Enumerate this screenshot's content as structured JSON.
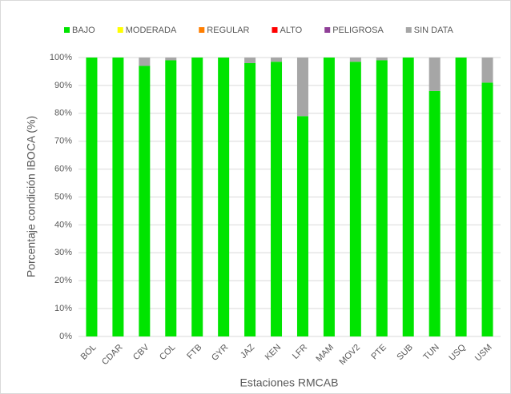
{
  "chart_data": {
    "type": "stacked_bar",
    "categories": [
      "BOL",
      "CDAR",
      "CBV",
      "COL",
      "FTB",
      "GYR",
      "JAZ",
      "KEN",
      "LFR",
      "MAM",
      "MOV2",
      "PTE",
      "SUB",
      "TUN",
      "USQ",
      "USM"
    ],
    "series": [
      {
        "name": "BAJO",
        "color": "#00e400",
        "values": [
          100,
          100,
          97,
          99,
          100,
          100,
          98,
          98.5,
          79,
          100,
          98.5,
          99,
          100,
          88,
          100,
          91
        ]
      },
      {
        "name": "MODERADA",
        "color": "#ffff00",
        "values": [
          0,
          0,
          0,
          0,
          0,
          0,
          0,
          0,
          0,
          0,
          0,
          0,
          0,
          0,
          0,
          0
        ]
      },
      {
        "name": "REGULAR",
        "color": "#ff7e00",
        "values": [
          0,
          0,
          0,
          0,
          0,
          0,
          0,
          0,
          0,
          0,
          0,
          0,
          0,
          0,
          0,
          0
        ]
      },
      {
        "name": "ALTO",
        "color": "#ff0000",
        "values": [
          0,
          0,
          0,
          0,
          0,
          0,
          0,
          0,
          0,
          0,
          0,
          0,
          0,
          0,
          0,
          0
        ]
      },
      {
        "name": "PELIGROSA",
        "color": "#8f3f97",
        "values": [
          0,
          0,
          0,
          0,
          0,
          0,
          0,
          0,
          0,
          0,
          0,
          0,
          0,
          0,
          0,
          0
        ]
      },
      {
        "name": "SIN DATA",
        "color": "#a6a6a6",
        "values": [
          0,
          0,
          3,
          1,
          0,
          0,
          2,
          1.5,
          21,
          0,
          1.5,
          1,
          0,
          12,
          0,
          9
        ]
      }
    ],
    "ylim": [
      0,
      100
    ],
    "yticks": [
      {
        "value": 0,
        "label": "0%"
      },
      {
        "value": 10,
        "label": "10%"
      },
      {
        "value": 20,
        "label": "20%"
      },
      {
        "value": 30,
        "label": "30%"
      },
      {
        "value": 40,
        "label": "40%"
      },
      {
        "value": 50,
        "label": "50%"
      },
      {
        "value": 60,
        "label": "60%"
      },
      {
        "value": 70,
        "label": "70%"
      },
      {
        "value": 80,
        "label": "80%"
      },
      {
        "value": 90,
        "label": "90%"
      },
      {
        "value": 100,
        "label": "100%"
      }
    ],
    "y_label": "Porcentaje condición IBOCA (%)",
    "x_label": "Estaciones RMCAB",
    "legend": "top"
  }
}
